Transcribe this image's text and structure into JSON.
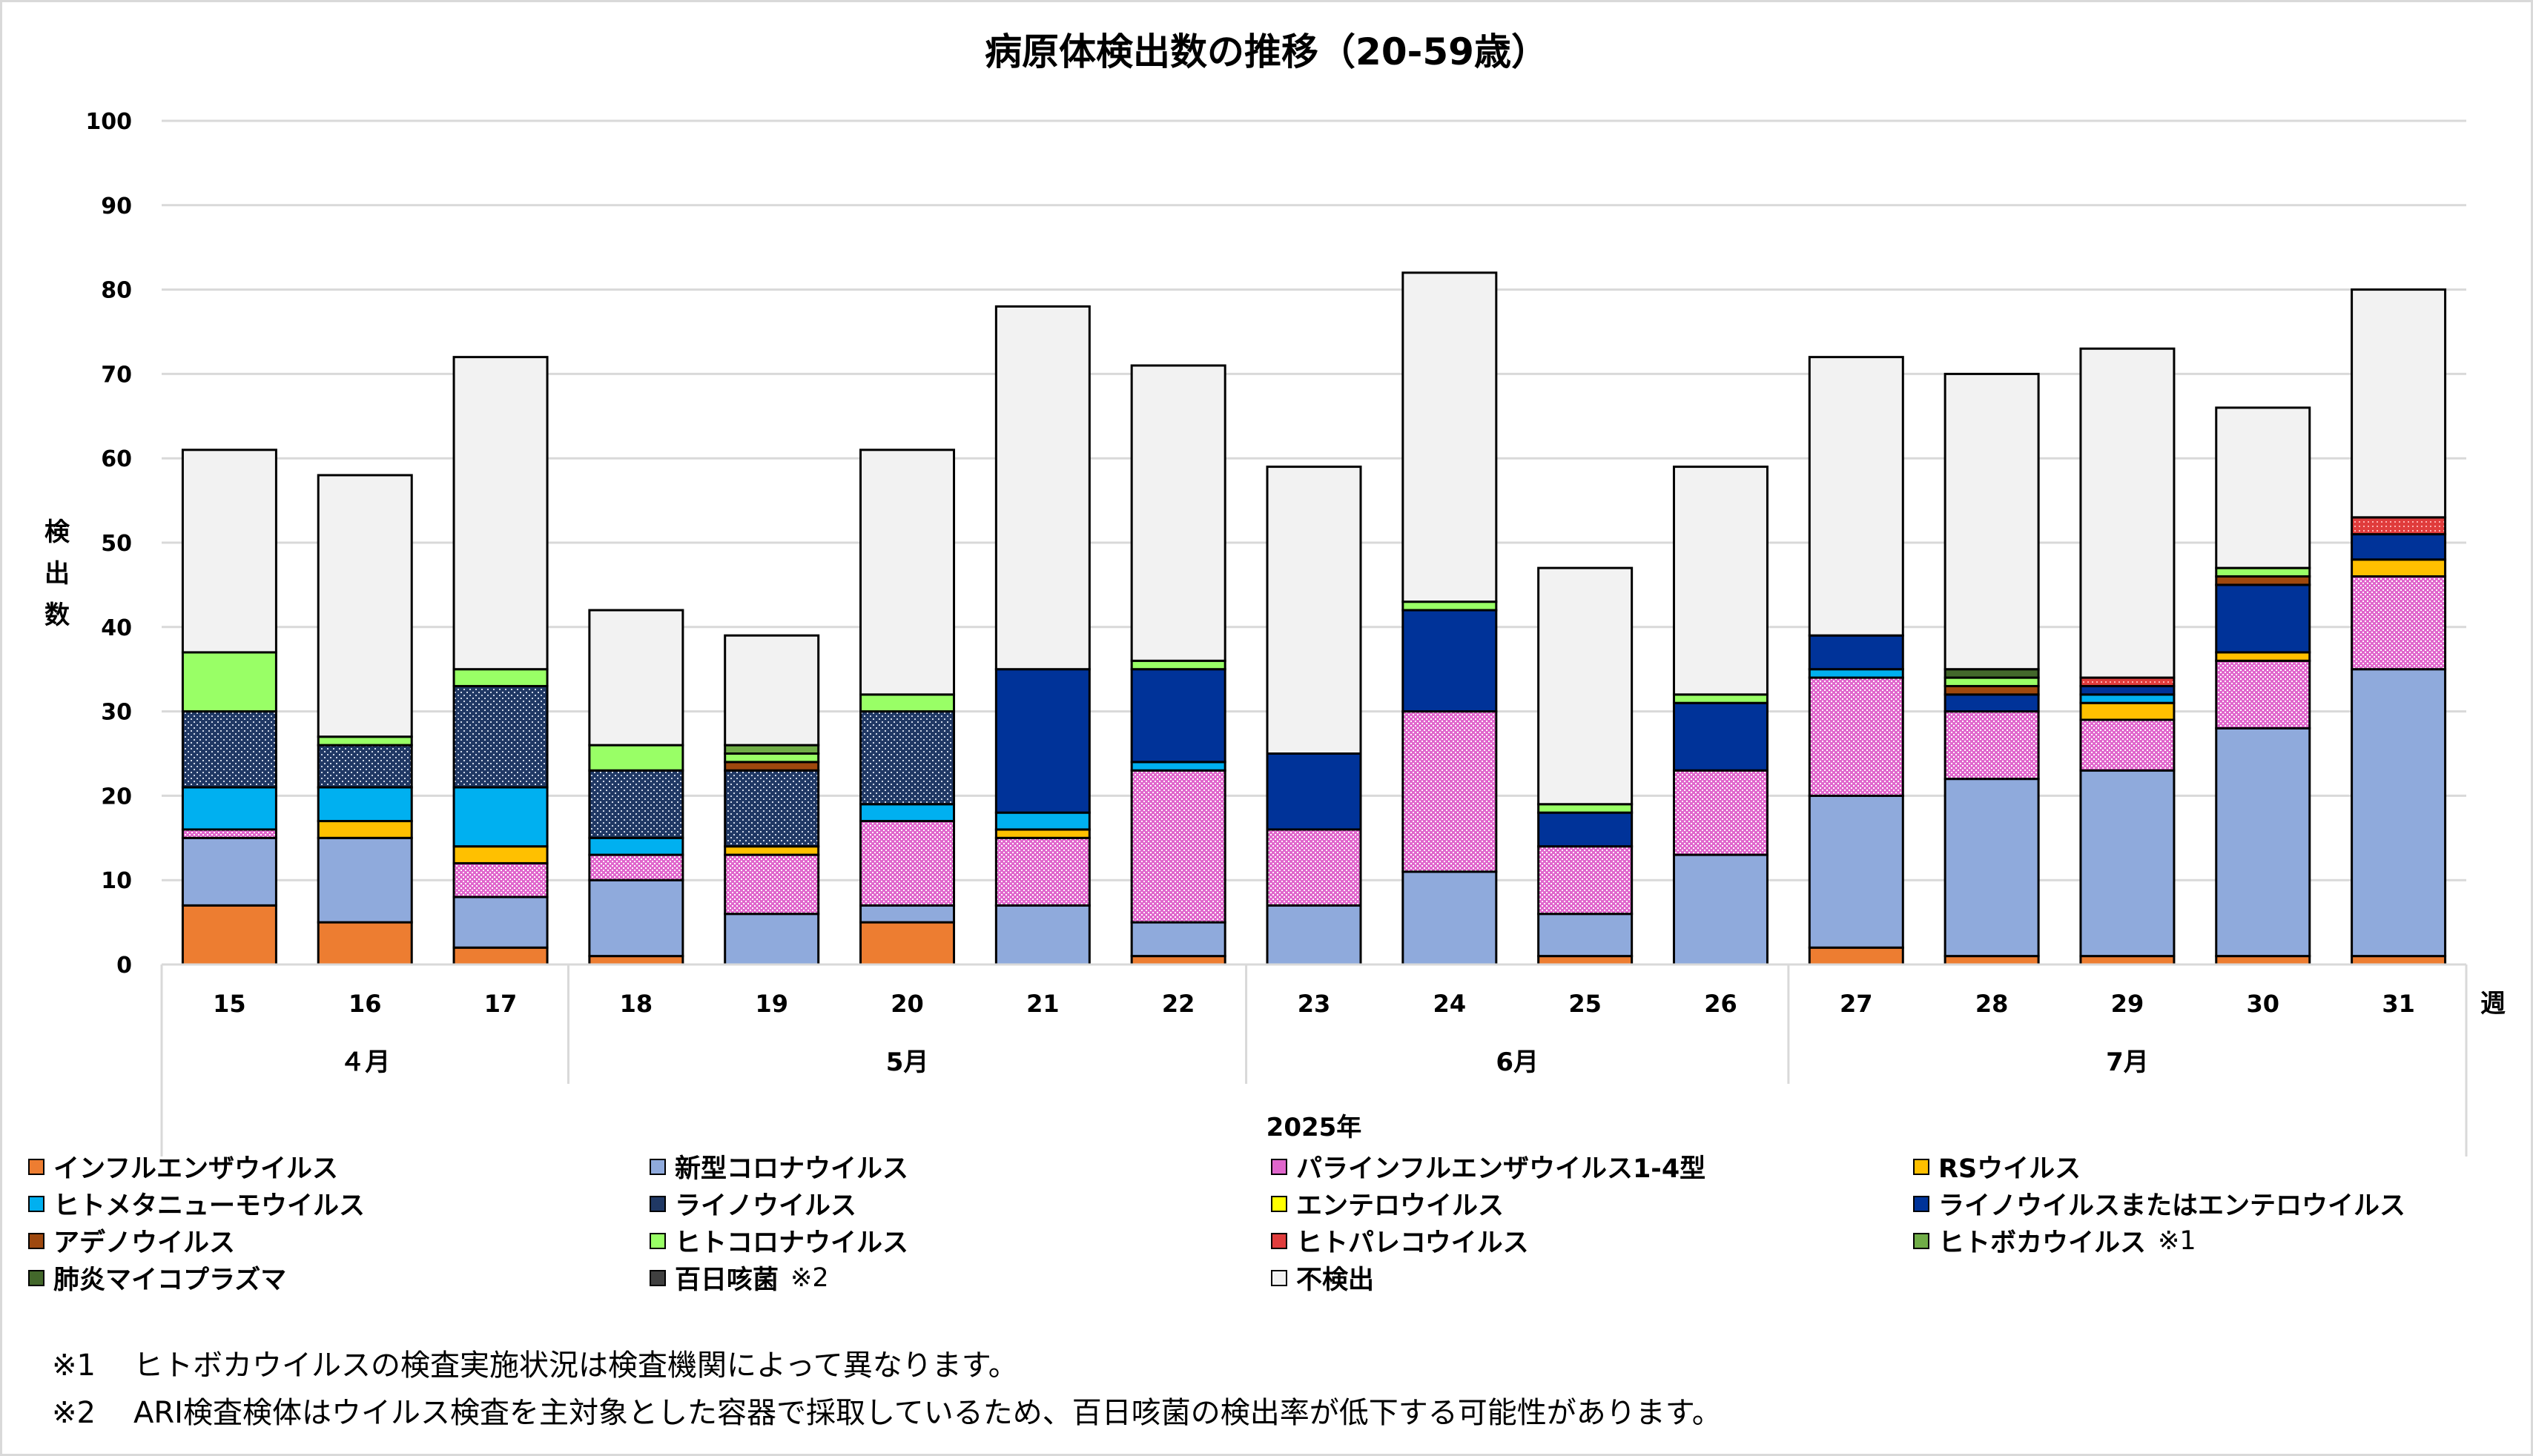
{
  "title": "病原体検出数の推移（20-59歳）",
  "chart_data": {
    "type": "bar",
    "stacked": true,
    "title": "病原体検出数の推移（20-59歳）",
    "ylabel": "検出数",
    "xlabel": "2025年",
    "x_unit_label": "週",
    "ylim": [
      0,
      100
    ],
    "yticks": [
      0,
      10,
      20,
      30,
      40,
      50,
      60,
      70,
      80,
      90,
      100
    ],
    "grid": true,
    "legend_position": "bottom",
    "categories": [
      "15",
      "16",
      "17",
      "18",
      "19",
      "20",
      "21",
      "22",
      "23",
      "24",
      "25",
      "26",
      "27",
      "28",
      "29",
      "30",
      "31"
    ],
    "month_groups": [
      {
        "label": "４月",
        "weeks": 3
      },
      {
        "label": "5月",
        "weeks": 5
      },
      {
        "label": "6月",
        "weeks": 4
      },
      {
        "label": "7月",
        "weeks": 5
      }
    ],
    "series": [
      {
        "name": "インフルエンザウイルス",
        "color": "#ED7D31",
        "pattern": "solid",
        "values": [
          7,
          5,
          2,
          1,
          0,
          5,
          0,
          1,
          0,
          0,
          1,
          0,
          2,
          1,
          1,
          1,
          1
        ]
      },
      {
        "name": "新型コロナウイルス",
        "color": "#8FAADC",
        "pattern": "solid",
        "values": [
          8,
          10,
          6,
          9,
          6,
          2,
          7,
          4,
          7,
          11,
          5,
          13,
          18,
          21,
          22,
          27,
          34
        ]
      },
      {
        "name": "パラインフルエンザウイルス1-4型",
        "color": "#E066CC",
        "pattern": "dots",
        "values": [
          1,
          0,
          4,
          3,
          7,
          10,
          8,
          18,
          9,
          19,
          8,
          10,
          14,
          8,
          6,
          8,
          11
        ]
      },
      {
        "name": "RSウイルス",
        "color": "#FFC000",
        "pattern": "solid",
        "values": [
          0,
          2,
          2,
          0,
          1,
          0,
          1,
          0,
          0,
          0,
          0,
          0,
          0,
          0,
          2,
          1,
          2
        ]
      },
      {
        "name": "ヒトメタニューモウイルス",
        "color": "#00B0F0",
        "pattern": "solid",
        "values": [
          5,
          4,
          7,
          2,
          0,
          2,
          2,
          1,
          0,
          0,
          0,
          0,
          1,
          0,
          1,
          0,
          0
        ]
      },
      {
        "name": "ライノウイルス",
        "color": "#203864",
        "pattern": "dots-light",
        "values": [
          9,
          5,
          12,
          8,
          9,
          11,
          0,
          0,
          0,
          0,
          0,
          0,
          0,
          0,
          0,
          0,
          0
        ]
      },
      {
        "name": "エンテロウイルス",
        "color": "#FFFF00",
        "pattern": "solid",
        "values": [
          0,
          0,
          0,
          0,
          0,
          0,
          0,
          0,
          0,
          0,
          0,
          0,
          0,
          0,
          0,
          0,
          0
        ]
      },
      {
        "name": "ライノウイルスまたはエンテロウイルス",
        "color": "#003399",
        "pattern": "solid",
        "values": [
          0,
          0,
          0,
          0,
          0,
          0,
          17,
          11,
          9,
          12,
          4,
          8,
          4,
          2,
          1,
          8,
          3
        ]
      },
      {
        "name": "アデノウイルス",
        "color": "#9E480E",
        "pattern": "solid",
        "values": [
          0,
          0,
          0,
          0,
          1,
          0,
          0,
          0,
          0,
          0,
          0,
          0,
          0,
          1,
          0,
          1,
          0
        ]
      },
      {
        "name": "ヒトコロナウイルス",
        "color": "#99FF66",
        "pattern": "solid",
        "values": [
          7,
          1,
          2,
          3,
          1,
          2,
          0,
          1,
          0,
          1,
          1,
          1,
          0,
          1,
          0,
          1,
          0
        ]
      },
      {
        "name": "ヒトパレコウイルス",
        "color": "#E03C3C",
        "pattern": "dots",
        "values": [
          0,
          0,
          0,
          0,
          0,
          0,
          0,
          0,
          0,
          0,
          0,
          0,
          0,
          0,
          1,
          0,
          2
        ]
      },
      {
        "name": "ヒトボカウイルス",
        "note": "※1",
        "color": "#70AD47",
        "pattern": "solid",
        "values": [
          0,
          0,
          0,
          0,
          1,
          0,
          0,
          0,
          0,
          0,
          0,
          0,
          0,
          0,
          0,
          0,
          0
        ]
      },
      {
        "name": "肺炎マイコプラズマ",
        "color": "#43682B",
        "pattern": "solid",
        "values": [
          0,
          0,
          0,
          0,
          0,
          0,
          0,
          0,
          0,
          0,
          0,
          0,
          0,
          1,
          0,
          0,
          0
        ]
      },
      {
        "name": "百日咳菌",
        "note": "※2",
        "color": "#404040",
        "pattern": "solid",
        "values": [
          0,
          0,
          0,
          0,
          0,
          0,
          0,
          0,
          0,
          0,
          0,
          0,
          0,
          0,
          0,
          0,
          0
        ]
      },
      {
        "name": "不検出",
        "color": "#F2F2F2",
        "pattern": "solid",
        "values": [
          24,
          31,
          37,
          16,
          13,
          29,
          43,
          35,
          34,
          39,
          28,
          27,
          33,
          35,
          39,
          19,
          27
        ]
      }
    ],
    "totals": [
      61,
      58,
      72,
      42,
      39,
      61,
      78,
      71,
      59,
      82,
      47,
      59,
      72,
      70,
      73,
      66,
      80
    ]
  },
  "legend_layout": [
    [
      "インフルエンザウイルス",
      "新型コロナウイルス",
      "パラインフルエンザウイルス1-4型",
      "RSウイルス"
    ],
    [
      "ヒトメタニューモウイルス",
      "ライノウイルス",
      "エンテロウイルス",
      "ライノウイルスまたはエンテロウイルス"
    ],
    [
      "アデノウイルス",
      "ヒトコロナウイルス",
      "ヒトパレコウイルス",
      "ヒトボカウイルス"
    ],
    [
      "肺炎マイコプラズマ",
      "百日咳菌",
      "不検出"
    ]
  ],
  "notes": [
    {
      "mark": "※1",
      "text": "ヒトボカウイルスの検査実施状況は検査機関によって異なります。"
    },
    {
      "mark": "※2",
      "text": "ARI検査検体はウイルス検査を主対象とした容器で採取しているため、百日咳菌の検出率が低下する可能性があります。"
    }
  ]
}
